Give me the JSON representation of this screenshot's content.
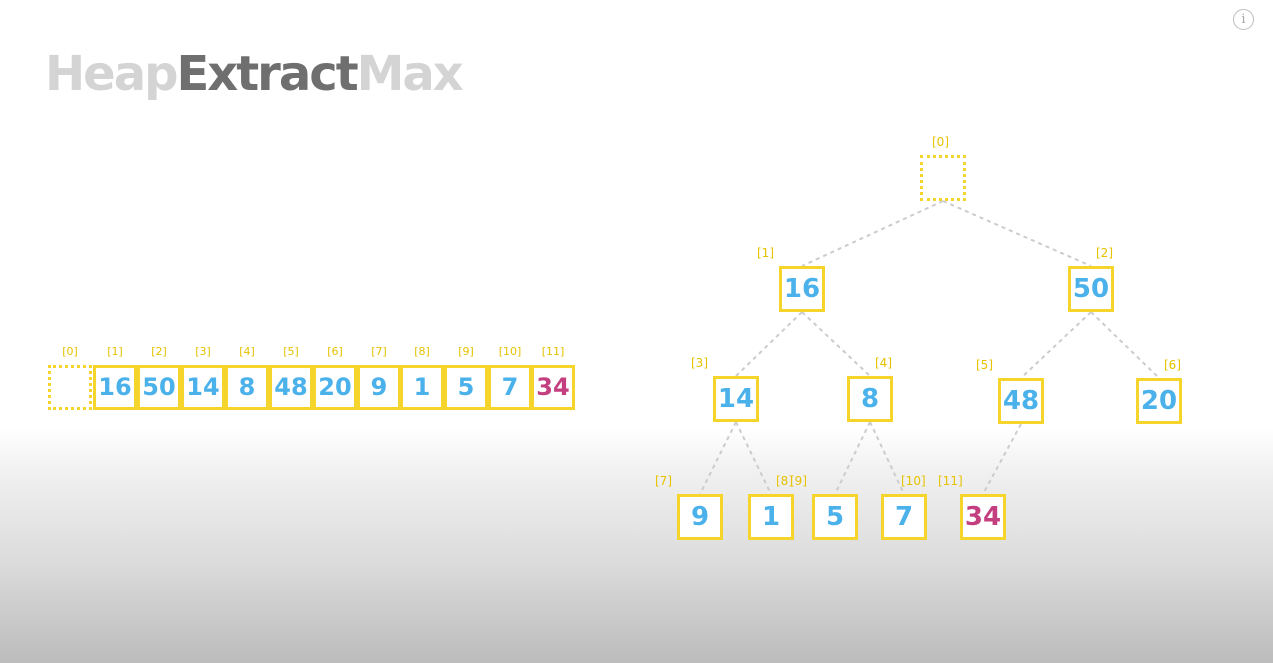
{
  "title": {
    "part1": "Heap",
    "part2": "Extract",
    "part3": "Max"
  },
  "info_icon": "i",
  "array": {
    "cells": [
      {
        "index": "[0]",
        "value": "",
        "style": "dotted"
      },
      {
        "index": "[1]",
        "value": "16",
        "style": "normal"
      },
      {
        "index": "[2]",
        "value": "50",
        "style": "normal"
      },
      {
        "index": "[3]",
        "value": "14",
        "style": "normal"
      },
      {
        "index": "[4]",
        "value": "8",
        "style": "normal"
      },
      {
        "index": "[5]",
        "value": "48",
        "style": "normal"
      },
      {
        "index": "[6]",
        "value": "20",
        "style": "normal"
      },
      {
        "index": "[7]",
        "value": "9",
        "style": "normal"
      },
      {
        "index": "[8]",
        "value": "1",
        "style": "normal"
      },
      {
        "index": "[9]",
        "value": "5",
        "style": "normal"
      },
      {
        "index": "[10]",
        "value": "7",
        "style": "normal"
      },
      {
        "index": "[11]",
        "value": "34",
        "style": "highlight"
      }
    ]
  },
  "tree": {
    "nodes": [
      {
        "index": "[0]",
        "value": ""
      },
      {
        "index": "[1]",
        "value": "16"
      },
      {
        "index": "[2]",
        "value": "50"
      },
      {
        "index": "[3]",
        "value": "14"
      },
      {
        "index": "[4]",
        "value": "8"
      },
      {
        "index": "[5]",
        "value": "48"
      },
      {
        "index": "[6]",
        "value": "20"
      },
      {
        "index": "[7]",
        "value": "9"
      },
      {
        "index": "[8]",
        "value": "1"
      },
      {
        "index": "[9]",
        "value": "5"
      },
      {
        "index": "[10]",
        "value": "7"
      },
      {
        "index": "[11]",
        "value": "34"
      }
    ]
  },
  "colors": {
    "border": "#f5d52c",
    "index_label": "#e6c200",
    "value": "#4ab1ea",
    "highlight": "#c43f80",
    "edge": "#cccccc"
  }
}
